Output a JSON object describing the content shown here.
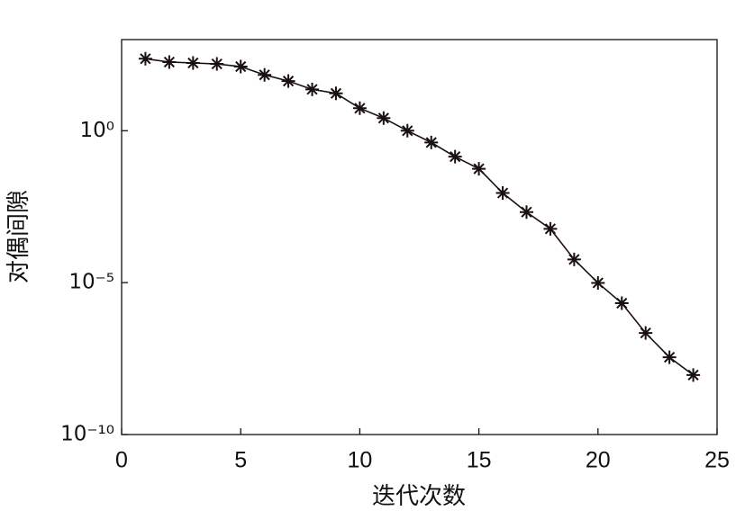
{
  "chart_data": {
    "type": "line",
    "xlabel": "迭代次数",
    "ylabel": "对偶间隙",
    "x": [
      1,
      2,
      3,
      4,
      5,
      6,
      7,
      8,
      9,
      10,
      11,
      12,
      13,
      14,
      15,
      16,
      17,
      18,
      19,
      20,
      21,
      22,
      23,
      24
    ],
    "series": [
      {
        "color": "#1a1010",
        "marker": "asterisk",
        "values": [
          234,
          182,
          170,
          158,
          129,
          69,
          43,
          23,
          17,
          5.5,
          2.6,
          1,
          0.41,
          0.14,
          0.056,
          0.0089,
          0.0021,
          0.00059,
          5.8e-05,
          9.8e-06,
          2.1e-06,
          2.2e-07,
          3.5e-08,
          9.1e-09
        ]
      }
    ],
    "xlim": [
      0,
      25
    ],
    "xticks": [
      0,
      5,
      10,
      15,
      20,
      25
    ],
    "ylim": [
      1e-10,
      1000
    ],
    "ylog": true,
    "yticks": [
      {
        "value": 1e-10,
        "label": "10⁻¹⁰"
      },
      {
        "value": 1e-05,
        "label": "10⁻⁵"
      },
      {
        "value": 1,
        "label": "10⁰"
      }
    ],
    "grid": false
  }
}
